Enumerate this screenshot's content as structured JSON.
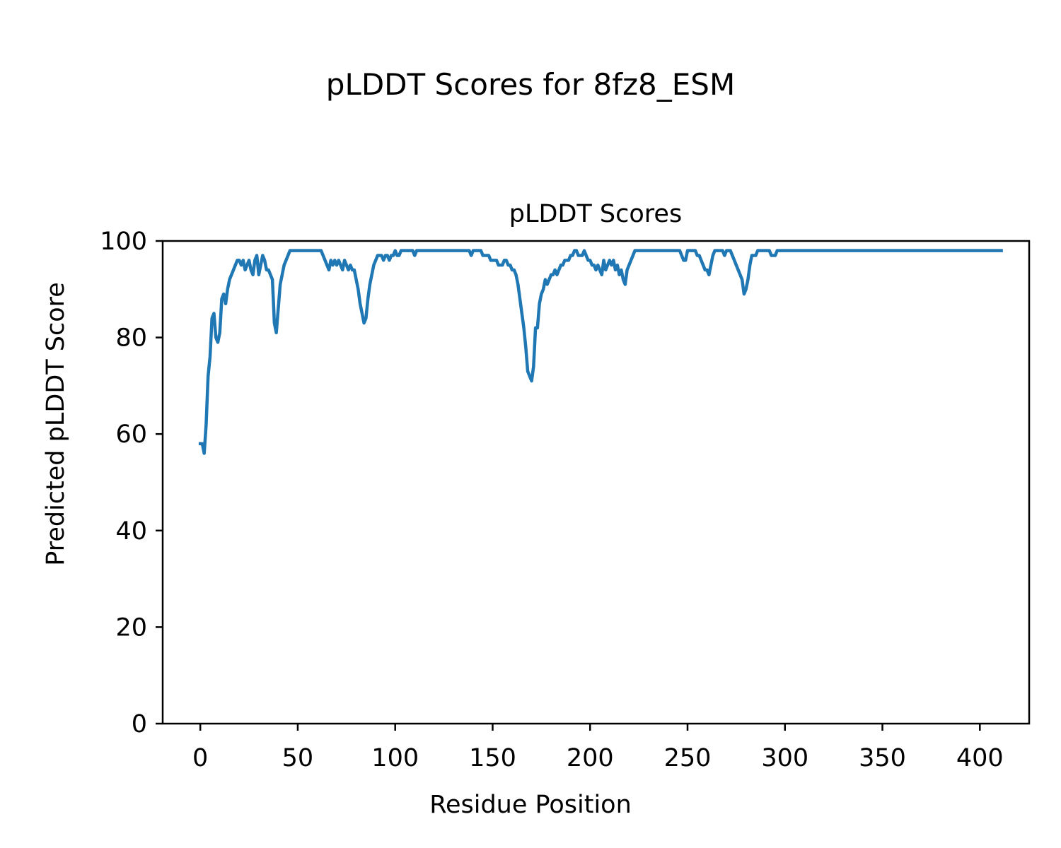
{
  "figure": {
    "suptitle": "pLDDT Scores for 8fz8_ESM"
  },
  "chart_data": {
    "type": "line",
    "title": "pLDDT Scores",
    "xlabel": "Residue Position",
    "ylabel": "Predicted pLDDT Score",
    "xlim": [
      -19.3,
      425.3
    ],
    "ylim": [
      0,
      100
    ],
    "xticks": [
      "0",
      "50",
      "100",
      "150",
      "200",
      "250",
      "300",
      "350",
      "400"
    ],
    "yticks": [
      "0",
      "20",
      "40",
      "60",
      "80",
      "100"
    ],
    "grid": false,
    "line_color": "#1f77b4",
    "series": [
      {
        "x_start": 0,
        "x_step": 1,
        "values": [
          58,
          58,
          56,
          62,
          72,
          76,
          84,
          85,
          80,
          79,
          81,
          88,
          89,
          87,
          90,
          92,
          93,
          94,
          95,
          96,
          96,
          95,
          96,
          94,
          95,
          96,
          94,
          93,
          96,
          97,
          93,
          95,
          97,
          96,
          94,
          94,
          93,
          92,
          83,
          81,
          86,
          91,
          93,
          95,
          96,
          97,
          98,
          98,
          98,
          98,
          98,
          98,
          98,
          98,
          98,
          98,
          98,
          98,
          98,
          98,
          98,
          98,
          98,
          97,
          96,
          95,
          94,
          96,
          95,
          96,
          95,
          96,
          95,
          94,
          96,
          95,
          94,
          95,
          94,
          94,
          92,
          90,
          87,
          85,
          83,
          84,
          88,
          91,
          93,
          95,
          96,
          97,
          97,
          97,
          96,
          97,
          97,
          96,
          97,
          97,
          98,
          97,
          97,
          98,
          98,
          98,
          98,
          98,
          98,
          98,
          97,
          98,
          98,
          98,
          98,
          98,
          98,
          98,
          98,
          98,
          98,
          98,
          98,
          98,
          98,
          98,
          98,
          98,
          98,
          98,
          98,
          98,
          98,
          98,
          98,
          98,
          98,
          98,
          98,
          97,
          98,
          98,
          98,
          98,
          98,
          97,
          97,
          97,
          97,
          96,
          96,
          96,
          96,
          95,
          95,
          95,
          96,
          96,
          95,
          95,
          94,
          94,
          93,
          91,
          88,
          85,
          82,
          78,
          73,
          72,
          71,
          74,
          82,
          82,
          87,
          89,
          90,
          92,
          91,
          92,
          93,
          93,
          94,
          93,
          94,
          95,
          95,
          96,
          96,
          96,
          97,
          97,
          98,
          98,
          97,
          97,
          97,
          98,
          97,
          96,
          96,
          95,
          95,
          94,
          95,
          94,
          93,
          96,
          94,
          95,
          96,
          95,
          96,
          94,
          95,
          93,
          94,
          92,
          91,
          94,
          95,
          96,
          97,
          98,
          98,
          98,
          98,
          98,
          98,
          98,
          98,
          98,
          98,
          98,
          98,
          98,
          98,
          98,
          98,
          98,
          98,
          98,
          98,
          98,
          98,
          98,
          98,
          97,
          96,
          96,
          98,
          98,
          98,
          98,
          98,
          97,
          97,
          96,
          95,
          94,
          94,
          93,
          95,
          97,
          98,
          98,
          98,
          98,
          98,
          97,
          98,
          98,
          98,
          97,
          96,
          95,
          94,
          93,
          92,
          89,
          90,
          92,
          95,
          97,
          97,
          97,
          98,
          98,
          98,
          98,
          98,
          98,
          98,
          97,
          97,
          97,
          98,
          98,
          98,
          98,
          98,
          98,
          98,
          98,
          98,
          98,
          98,
          98,
          98,
          98,
          98,
          98,
          98,
          98,
          98,
          98,
          98,
          98,
          98,
          98,
          98,
          98,
          98,
          98,
          98,
          98,
          98,
          98,
          98,
          98,
          98,
          98,
          98,
          98,
          98,
          98,
          98,
          98,
          98,
          98,
          98,
          98,
          98,
          98,
          98,
          98,
          98,
          98,
          98,
          98,
          98,
          98,
          98,
          98,
          98,
          98,
          98,
          98,
          98,
          98,
          98,
          98,
          98,
          98,
          98,
          98,
          98,
          98,
          98,
          98,
          98,
          98,
          98,
          98,
          98,
          98,
          98,
          98,
          98,
          98,
          98,
          98,
          98,
          98,
          98,
          98,
          98,
          98,
          98,
          98,
          98,
          98,
          98,
          98,
          98,
          98,
          98,
          98,
          98,
          98,
          98,
          98,
          98,
          98,
          98,
          98,
          98,
          98,
          98,
          98,
          98,
          98
        ]
      }
    ]
  }
}
